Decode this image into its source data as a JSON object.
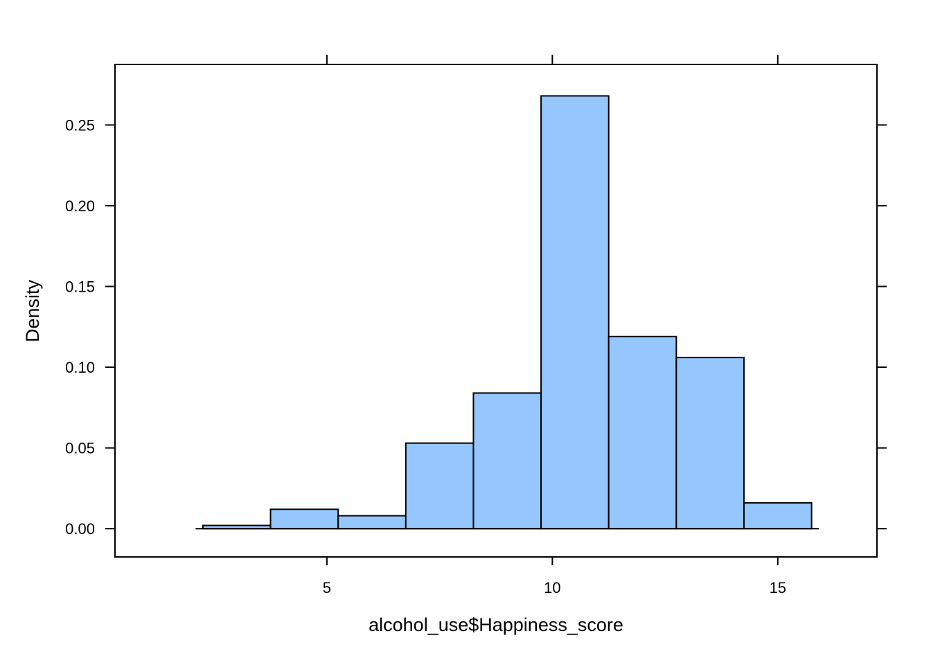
{
  "chart_data": {
    "type": "bar",
    "subtype": "histogram",
    "xlabel": "alcohol_use$Happiness_score",
    "ylabel": "Density",
    "bin_edges": [
      2.25,
      3.75,
      5.25,
      6.75,
      8.25,
      9.75,
      11.25,
      12.75,
      14.25,
      15.75
    ],
    "values": [
      0.002,
      0.012,
      0.008,
      0.053,
      0.084,
      0.268,
      0.119,
      0.106,
      0.016
    ],
    "xlim": [
      0.3,
      17.2
    ],
    "ylim": [
      -0.0175,
      0.2875
    ],
    "x_ticks": [
      5,
      10,
      15
    ],
    "x_tick_labels": [
      "5",
      "10",
      "15"
    ],
    "y_ticks": [
      0.0,
      0.05,
      0.1,
      0.15,
      0.2,
      0.25
    ],
    "y_tick_labels": [
      "0.00",
      "0.05",
      "0.10",
      "0.15",
      "0.20",
      "0.25"
    ],
    "bar_fill": "#95c6fe",
    "bar_stroke": "#000000",
    "grid": false,
    "legend": "none"
  }
}
